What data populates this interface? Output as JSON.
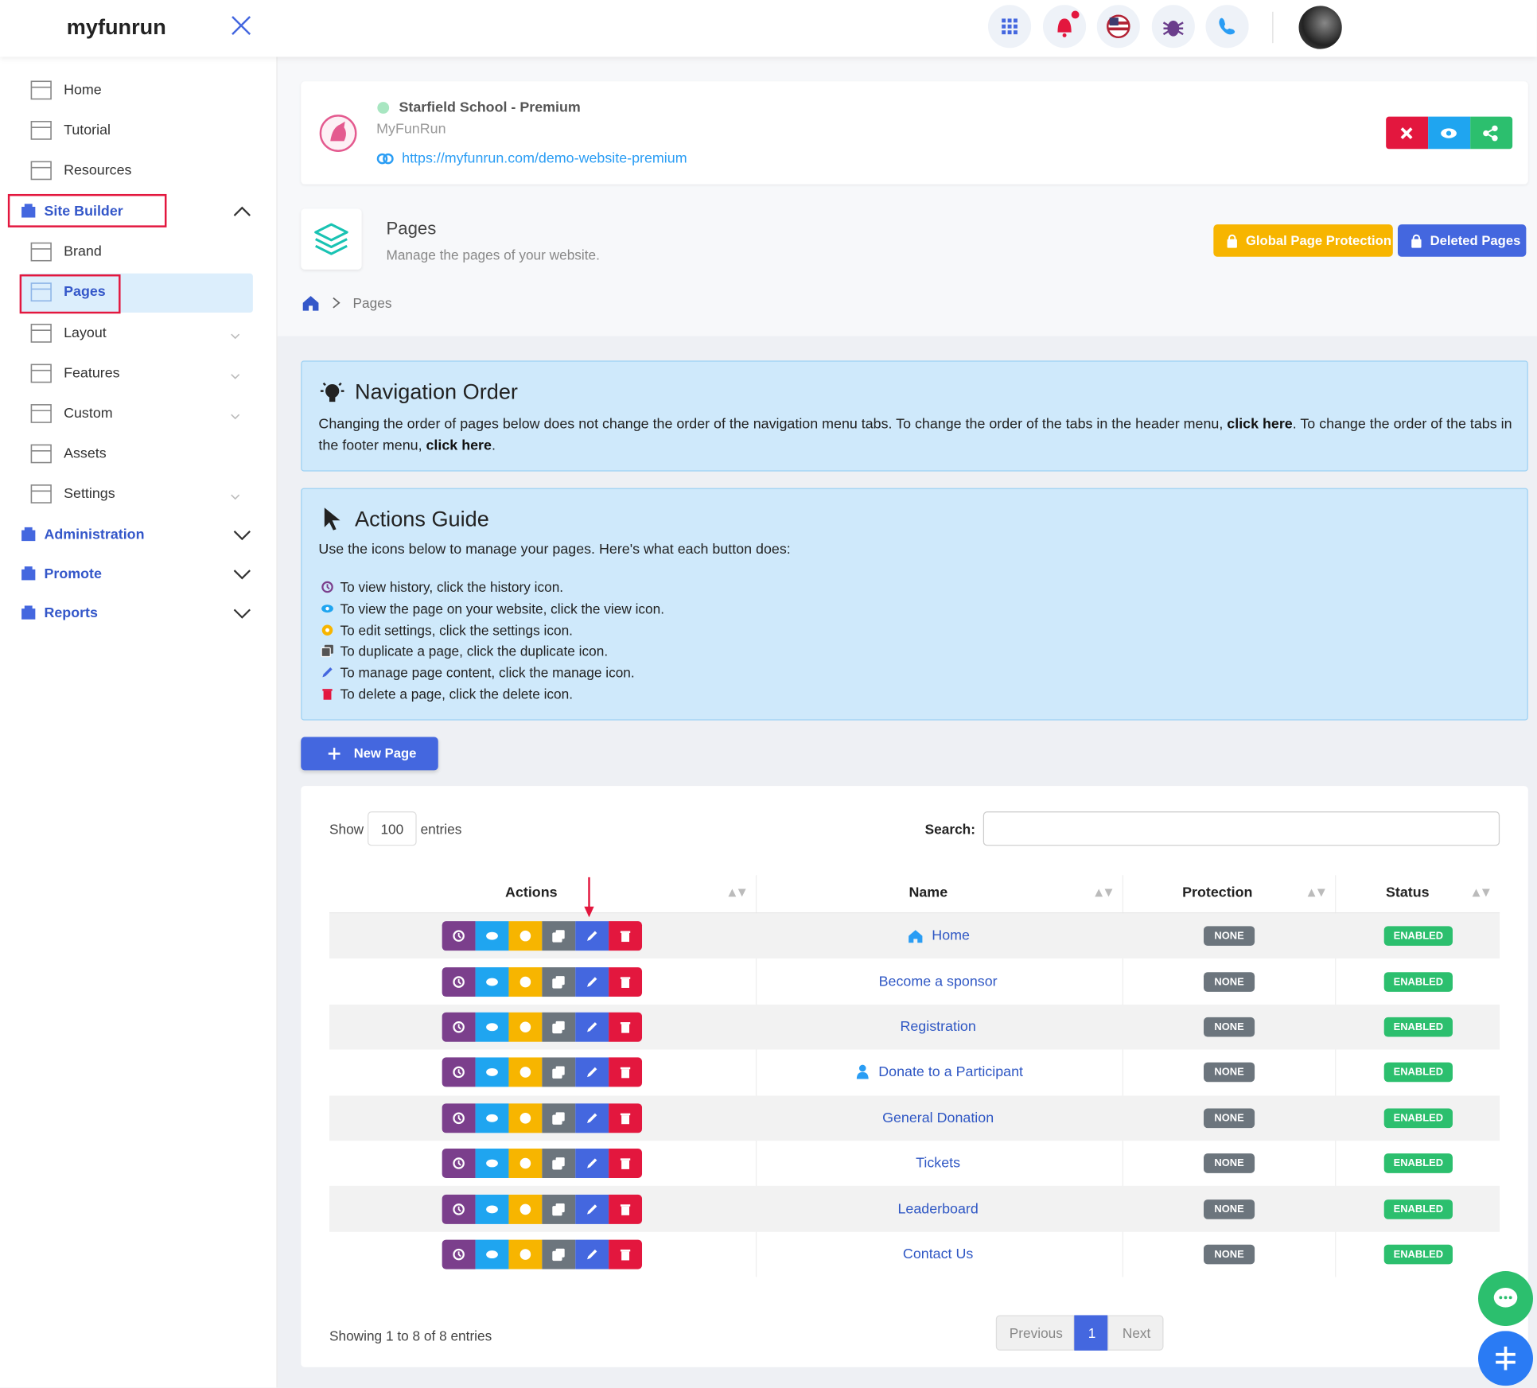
{
  "header": {
    "logo": "myfunrun"
  },
  "sidebar": {
    "items": [
      "Home",
      "Tutorial",
      "Resources",
      "Site Builder",
      "Brand",
      "Pages",
      "Layout",
      "Features",
      "Custom",
      "Assets",
      "Settings",
      "Administration",
      "Promote",
      "Reports"
    ]
  },
  "site": {
    "name": "Starfield School - Premium",
    "org": "MyFunRun",
    "url": "https://myfunrun.com/demo-website-premium"
  },
  "page_header": {
    "title": "Pages",
    "subtitle": "Manage the pages of your website.",
    "buttons": [
      "Global Page Protection",
      "Deleted Pages"
    ]
  },
  "breadcrumb": [
    "Pages"
  ],
  "navigation_order": {
    "title": "Navigation Order",
    "text": [
      "Changing the order of pages below does not change the order of the navigation menu tabs. To change the order of the tabs in the header menu, ",
      "click here",
      ". To change the order of the tabs in the footer menu, ",
      "click here",
      "."
    ]
  },
  "actions_guide": {
    "title": "Actions Guide",
    "intro": "Use the icons below to manage your pages. Here's what each button does:",
    "items": [
      "To view history, click the history icon.",
      "To view the page on your website, click the view icon.",
      "To edit settings, click the settings icon.",
      "To duplicate a page, click the duplicate icon.",
      "To manage page content, click the manage icon.",
      "To delete a page, click the delete icon."
    ]
  },
  "new_page_button": "New Page",
  "table": {
    "show_label": "Show",
    "page_length": 100,
    "entries_label": "entries",
    "search_label": "Search:",
    "columns": [
      "Actions",
      "Name",
      "Protection",
      "Status"
    ],
    "rows": [
      [
        "Home",
        "NONE",
        "ENABLED"
      ],
      [
        "Become a sponsor",
        "NONE",
        "ENABLED"
      ],
      [
        "Registration",
        "NONE",
        "ENABLED"
      ],
      [
        "Donate to a Participant",
        "NONE",
        "ENABLED"
      ],
      [
        "General Donation",
        "NONE",
        "ENABLED"
      ],
      [
        "Tickets",
        "NONE",
        "ENABLED"
      ],
      [
        "Leaderboard",
        "NONE",
        "ENABLED"
      ],
      [
        "Contact Us",
        "NONE",
        "ENABLED"
      ]
    ],
    "info": "Showing 1 to 8 of 8 entries",
    "pagination": [
      "Previous",
      1,
      "Next"
    ]
  }
}
